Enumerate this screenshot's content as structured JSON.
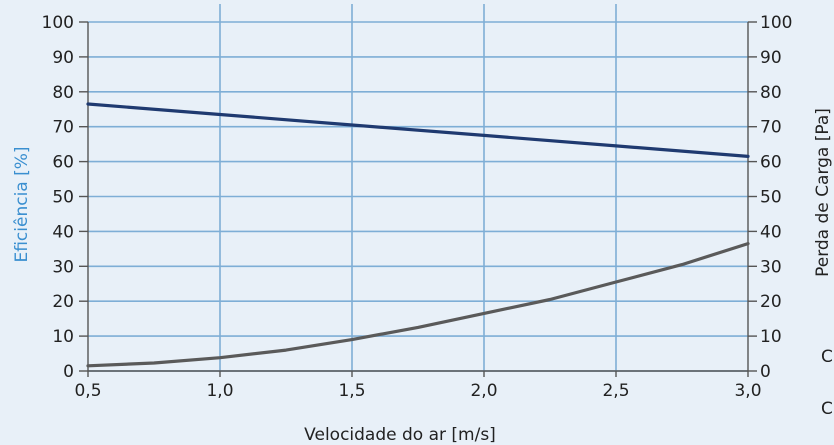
{
  "chart_data": {
    "type": "line",
    "title": "",
    "xlabel": "Velocidade do ar [m/s]",
    "ylabel_left": "Eficiência [%]",
    "ylabel_right": "Perda de Carga [Pa]",
    "xlim": [
      0.5,
      3.0
    ],
    "ylim_left": [
      0,
      100
    ],
    "ylim_right": [
      0,
      100
    ],
    "x_ticks": [
      "0,5",
      "1,0",
      "1,5",
      "2,0",
      "2,5",
      "3,0"
    ],
    "y_ticks_left": [
      "0",
      "10",
      "20",
      "30",
      "40",
      "50",
      "60",
      "70",
      "80",
      "90",
      "100"
    ],
    "y_ticks_right": [
      "0",
      "10",
      "20",
      "30",
      "40",
      "50",
      "60",
      "70",
      "80",
      "90",
      "100"
    ],
    "grid": true,
    "series": [
      {
        "axis": "left",
        "color": "#1f3a70",
        "x": [
          0.5,
          1.0,
          1.5,
          2.0,
          2.5,
          3.0
        ],
        "values": [
          76.5,
          73.5,
          70.5,
          67.5,
          64.5,
          61.5
        ]
      },
      {
        "axis": "right",
        "color": "#5a5a5a",
        "x": [
          0.5,
          0.75,
          1.0,
          1.25,
          1.5,
          1.75,
          2.0,
          2.25,
          2.5,
          2.75,
          3.0
        ],
        "values": [
          1.5,
          2.3,
          3.8,
          6.0,
          9.0,
          12.5,
          16.5,
          20.5,
          25.5,
          30.5,
          36.5
        ]
      }
    ],
    "colors": {
      "left_axis_label": "#3a8fd0",
      "grid": "#7eaed6",
      "axis_line": "#555555"
    }
  },
  "cut_off_text": [
    "C",
    "C"
  ]
}
